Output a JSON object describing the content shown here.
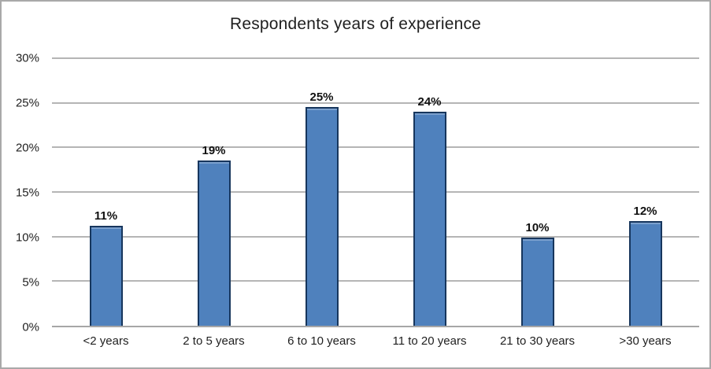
{
  "chart_data": {
    "type": "bar",
    "title": "Respondents years of experience",
    "categories": [
      "<2 years",
      "2 to 5 years",
      "6 to 10 years",
      "11 to 20 years",
      "21 to 30 years",
      ">30 years"
    ],
    "values": [
      11,
      19,
      25,
      24,
      10,
      12
    ],
    "data_labels": [
      "11%",
      "19%",
      "25%",
      "24%",
      "10%",
      "12%"
    ],
    "plot_values": [
      11.2,
      18.5,
      24.5,
      24.0,
      9.9,
      11.7
    ],
    "xlabel": "",
    "ylabel": "",
    "ylim": [
      0,
      30
    ],
    "yticks": [
      0,
      5,
      10,
      15,
      20,
      25,
      30
    ],
    "ytick_labels": [
      "0%",
      "5%",
      "10%",
      "15%",
      "20%",
      "25%",
      "30%"
    ],
    "grid": true,
    "legend": "none",
    "colors": {
      "bar_fill": "#4f81bd",
      "bar_border": "#17365d",
      "gridline": "#b5b5b5",
      "axis_line": "#a6a6a6",
      "frame_border": "#a9a9a9",
      "text": "#1f1f1f"
    }
  }
}
